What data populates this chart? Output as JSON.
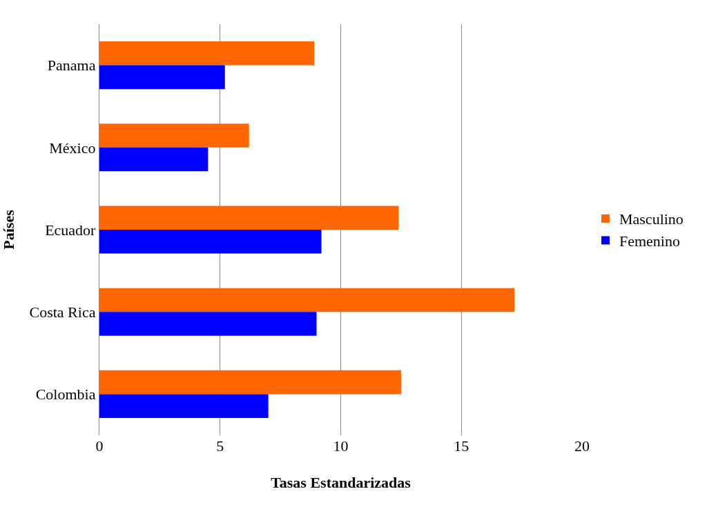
{
  "chart_data": {
    "type": "bar",
    "orientation": "horizontal",
    "xlabel": "Tasas Estandarizadas",
    "ylabel": "Países",
    "categories": [
      "Panama",
      "México",
      "Ecuador",
      "Costa Rica",
      "Colombia"
    ],
    "series": [
      {
        "name": "Masculino",
        "color": "#ff6600",
        "values": [
          8.9,
          6.2,
          12.4,
          17.2,
          12.5
        ]
      },
      {
        "name": "Femenino",
        "color": "#0000ff",
        "values": [
          5.2,
          4.5,
          9.2,
          9.0,
          7.0
        ]
      }
    ],
    "xlim": [
      0,
      20
    ],
    "xticks": [
      0,
      5,
      10,
      15,
      20
    ],
    "grid": "x",
    "legend": "right"
  }
}
